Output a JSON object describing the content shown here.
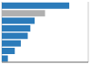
{
  "chart_data": {
    "type": "bar",
    "orientation": "horizontal",
    "categories": [
      null,
      null,
      null,
      null,
      null,
      null,
      null,
      null
    ],
    "values": [
      78,
      50,
      38,
      33,
      30,
      22,
      15,
      7
    ],
    "colors": [
      "#2b7bba",
      "#b0b0b0",
      "#2b7bba",
      "#2b7bba",
      "#2b7bba",
      "#2b7bba",
      "#2b7bba",
      "#2b7bba"
    ],
    "xlim": [
      0,
      100
    ],
    "xticks": [
      20,
      40,
      60,
      80,
      100
    ],
    "grid": true,
    "tick_labels": false
  }
}
